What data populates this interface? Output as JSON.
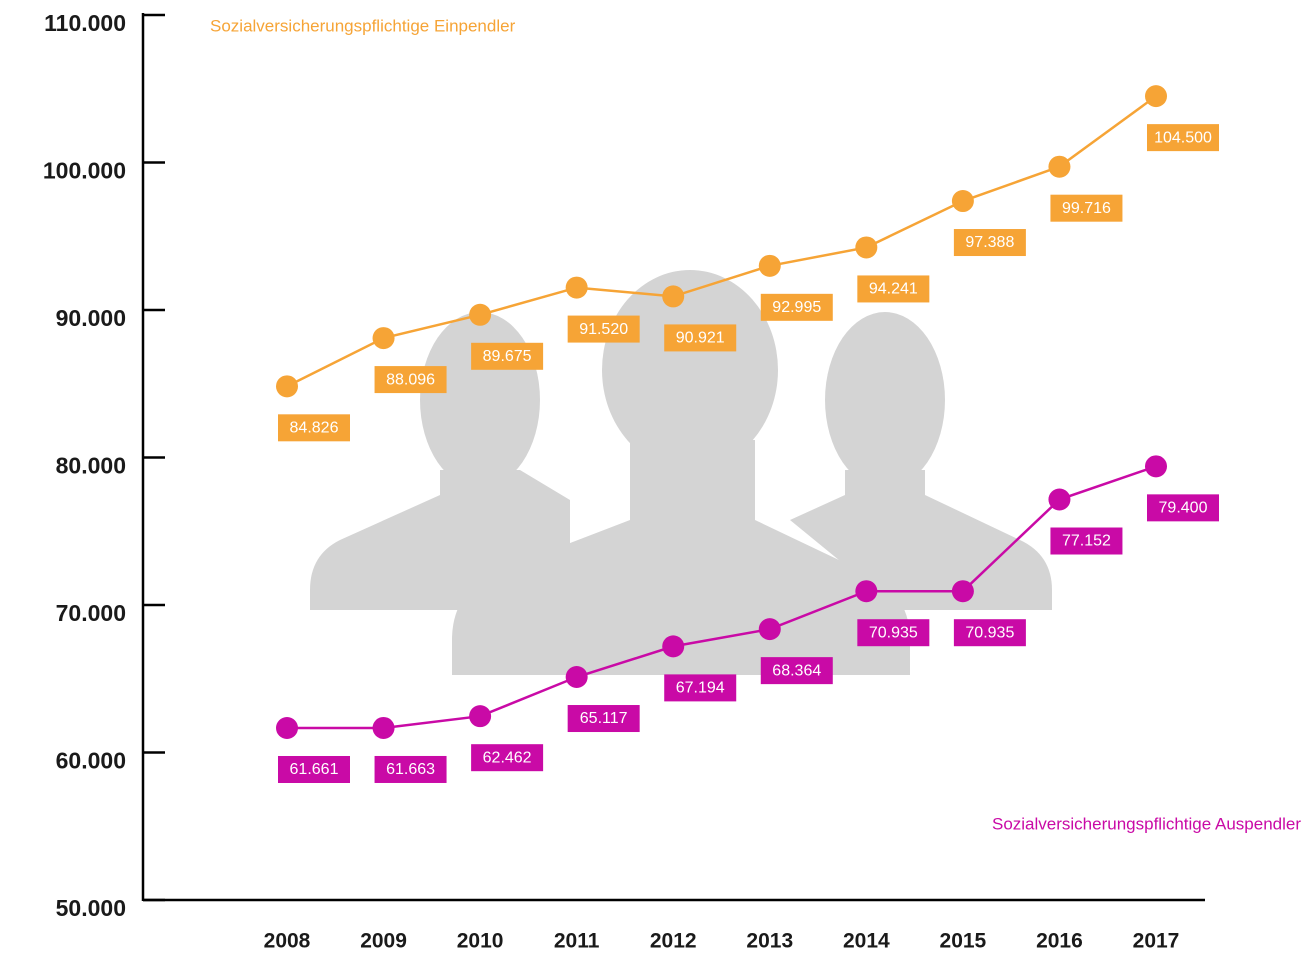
{
  "chart_data": {
    "type": "line",
    "x": [
      2008,
      2009,
      2010,
      2011,
      2012,
      2013,
      2014,
      2015,
      2016,
      2017
    ],
    "xlim": [
      2006.55,
      2017.5
    ],
    "ylim": [
      50000,
      110000
    ],
    "yticks": [
      {
        "value": 50000,
        "label": "50.000"
      },
      {
        "value": 60000,
        "label": "60.000"
      },
      {
        "value": 70000,
        "label": "70.000"
      },
      {
        "value": 80000,
        "label": "80.000"
      },
      {
        "value": 90000,
        "label": "90.000"
      },
      {
        "value": 100000,
        "label": "100.000"
      },
      {
        "value": 110000,
        "label": "110.000"
      }
    ],
    "series": [
      {
        "name": "Sozialversicherungspflichtige Einpendler",
        "color": "#f6a436",
        "values": [
          84826,
          88096,
          89675,
          91520,
          90921,
          92995,
          94241,
          97388,
          99716,
          104500
        ],
        "value_labels": [
          "84.826",
          "88.096",
          "89.675",
          "91.520",
          "90.921",
          "92.995",
          "94.241",
          "97.388",
          "99.716",
          "104.500"
        ]
      },
      {
        "name": "Sozialversicherungspflichtige Auspendler",
        "color": "#c90aa6",
        "values": [
          61661,
          61663,
          62462,
          65117,
          67194,
          68364,
          70935,
          70935,
          77152,
          79400
        ],
        "value_labels": [
          "61.661",
          "61.663",
          "62.462",
          "65.117",
          "67.194",
          "68.364",
          "70.935",
          "70.935",
          "77.152",
          "79.400"
        ]
      }
    ]
  }
}
